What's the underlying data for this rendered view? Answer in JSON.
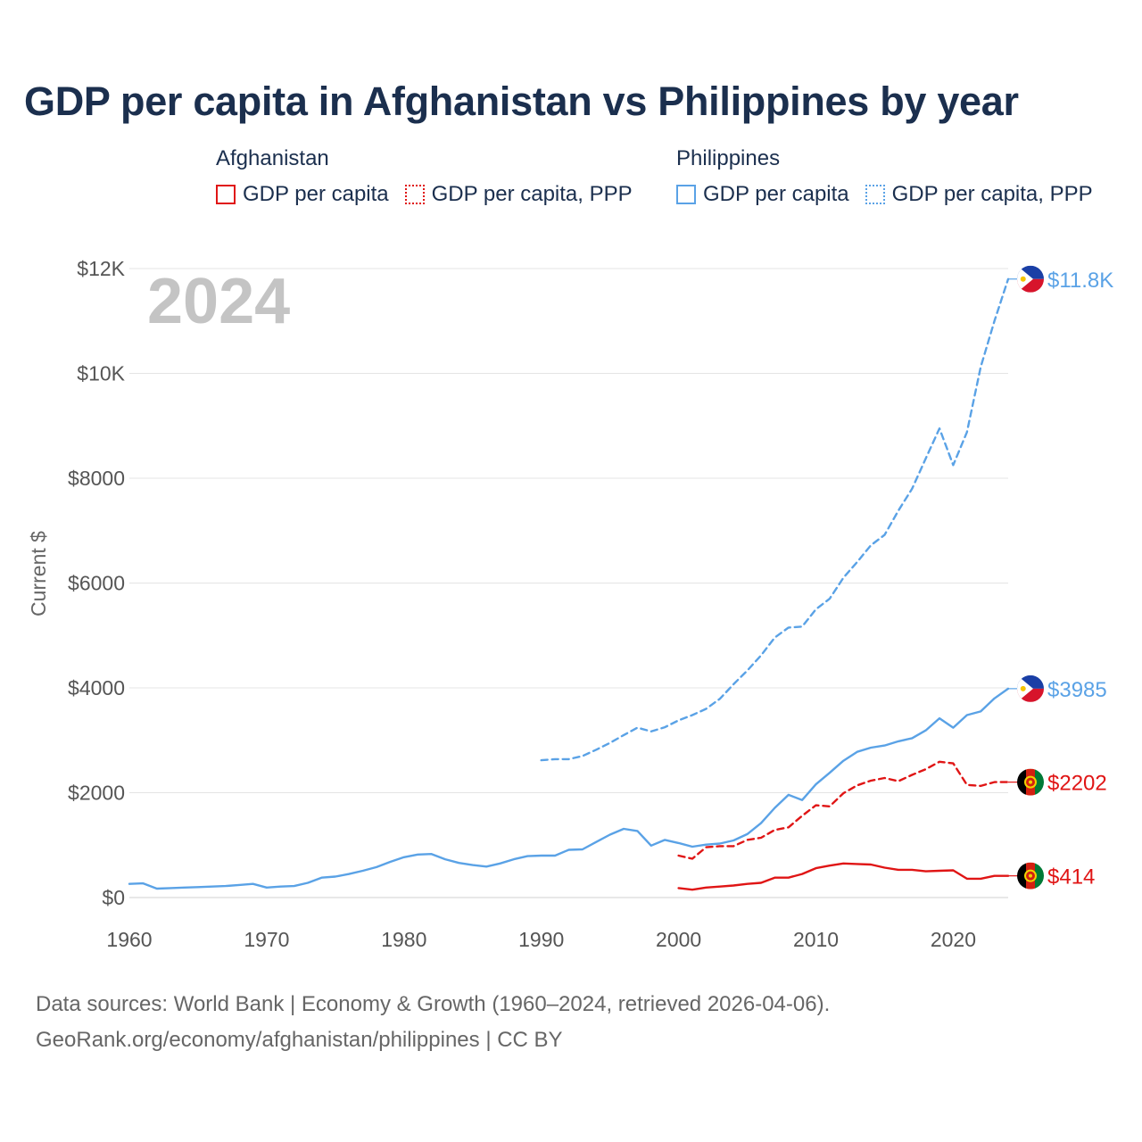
{
  "title": "GDP per capita in Afghanistan vs Philippines by year",
  "legend": {
    "groups": [
      {
        "country": "Afghanistan",
        "color": "#e01515",
        "items": [
          {
            "label": "GDP per capita",
            "style": "solid"
          },
          {
            "label": "GDP per capita, PPP",
            "style": "dotted"
          }
        ]
      },
      {
        "country": "Philippines",
        "color": "#5aa2e6",
        "items": [
          {
            "label": "GDP per capita",
            "style": "solid"
          },
          {
            "label": "GDP per capita, PPP",
            "style": "dotted"
          }
        ]
      }
    ]
  },
  "source": {
    "line1": "Data sources: World Bank | Economy & Growth (1960–2024, retrieved 2026-04-06).",
    "line2": "GeoRank.org/economy/afghanistan/philippines | CC BY"
  },
  "chart_data": {
    "type": "line",
    "title": "GDP per capita in Afghanistan vs Philippines by year",
    "watermark_year": "2024",
    "ylabel": "Current $",
    "xlabel": "",
    "xlim": [
      1960,
      2024
    ],
    "ylim": [
      0,
      12000
    ],
    "x_ticks": [
      1960,
      1970,
      1980,
      1990,
      2000,
      2010,
      2020
    ],
    "x_tick_labels": [
      "1960",
      "1970",
      "1980",
      "1990",
      "2000",
      "2010",
      "2020"
    ],
    "y_ticks": [
      0,
      2000,
      4000,
      6000,
      8000,
      10000,
      12000
    ],
    "y_tick_labels": [
      "$0",
      "$2000",
      "$4000",
      "$6000",
      "$8000",
      "$10K",
      "$12K"
    ],
    "grid": true,
    "series": [
      {
        "name": "Philippines GDP per capita, PPP",
        "country": "Philippines",
        "style": "dashed",
        "color": "#5aa2e6",
        "end_label": "$11.8K",
        "x": [
          1990,
          1991,
          1992,
          1993,
          1994,
          1995,
          1996,
          1997,
          1998,
          1999,
          2000,
          2001,
          2002,
          2003,
          2004,
          2005,
          2006,
          2007,
          2008,
          2009,
          2010,
          2011,
          2012,
          2013,
          2014,
          2015,
          2016,
          2017,
          2018,
          2019,
          2020,
          2021,
          2022,
          2023,
          2024
        ],
        "y": [
          2620,
          2640,
          2640,
          2700,
          2820,
          2950,
          3100,
          3240,
          3170,
          3250,
          3380,
          3480,
          3600,
          3790,
          4070,
          4330,
          4620,
          4960,
          5150,
          5170,
          5500,
          5700,
          6100,
          6400,
          6720,
          6920,
          7380,
          7800,
          8380,
          8950,
          8250,
          8880,
          10120,
          11000,
          11800
        ]
      },
      {
        "name": "Philippines GDP per capita",
        "country": "Philippines",
        "style": "solid",
        "color": "#5aa2e6",
        "end_label": "$3985",
        "x": [
          1960,
          1961,
          1962,
          1963,
          1964,
          1965,
          1966,
          1967,
          1968,
          1969,
          1970,
          1971,
          1972,
          1973,
          1974,
          1975,
          1976,
          1977,
          1978,
          1979,
          1980,
          1981,
          1982,
          1983,
          1984,
          1985,
          1986,
          1987,
          1988,
          1989,
          1990,
          1991,
          1992,
          1993,
          1994,
          1995,
          1996,
          1997,
          1998,
          1999,
          2000,
          2001,
          2002,
          2003,
          2004,
          2005,
          2006,
          2007,
          2008,
          2009,
          2010,
          2011,
          2012,
          2013,
          2014,
          2015,
          2016,
          2017,
          2018,
          2019,
          2020,
          2021,
          2022,
          2023,
          2024
        ],
        "y": [
          260,
          270,
          170,
          180,
          190,
          200,
          210,
          220,
          240,
          260,
          190,
          210,
          220,
          280,
          380,
          400,
          450,
          510,
          580,
          680,
          770,
          820,
          830,
          730,
          660,
          620,
          590,
          650,
          730,
          790,
          800,
          800,
          910,
          920,
          1060,
          1200,
          1310,
          1270,
          990,
          1100,
          1040,
          970,
          1010,
          1030,
          1090,
          1210,
          1420,
          1710,
          1960,
          1860,
          2160,
          2380,
          2610,
          2780,
          2860,
          2900,
          2980,
          3040,
          3190,
          3420,
          3240,
          3480,
          3550,
          3800,
          3985
        ]
      },
      {
        "name": "Afghanistan GDP per capita, PPP",
        "country": "Afghanistan",
        "style": "dashed",
        "color": "#e01515",
        "end_label": "$2202",
        "x": [
          2000,
          2001,
          2002,
          2003,
          2004,
          2005,
          2006,
          2007,
          2008,
          2009,
          2010,
          2011,
          2012,
          2013,
          2014,
          2015,
          2016,
          2017,
          2018,
          2019,
          2020,
          2021,
          2022,
          2023,
          2024
        ],
        "y": [
          800,
          740,
          960,
          980,
          980,
          1100,
          1140,
          1290,
          1340,
          1560,
          1760,
          1740,
          1990,
          2140,
          2230,
          2280,
          2220,
          2340,
          2450,
          2590,
          2560,
          2150,
          2130,
          2202,
          2202
        ]
      },
      {
        "name": "Afghanistan GDP per capita",
        "country": "Afghanistan",
        "style": "solid",
        "color": "#e01515",
        "end_label": "$414",
        "x": [
          2000,
          2001,
          2002,
          2003,
          2004,
          2005,
          2006,
          2007,
          2008,
          2009,
          2010,
          2011,
          2012,
          2013,
          2014,
          2015,
          2016,
          2017,
          2018,
          2019,
          2020,
          2021,
          2022,
          2023,
          2024
        ],
        "y": [
          180,
          150,
          190,
          210,
          230,
          260,
          280,
          380,
          380,
          450,
          560,
          610,
          650,
          640,
          630,
          570,
          530,
          530,
          500,
          510,
          520,
          360,
          360,
          414,
          414
        ]
      }
    ]
  }
}
